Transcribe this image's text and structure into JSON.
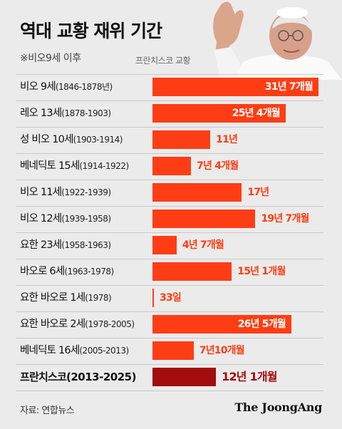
{
  "title": "역대 교황 재위 기간",
  "subtitle": "※비오9세 이후",
  "photo_caption": "프란치스코 교황",
  "source": "자료: 연합뉴스",
  "logo": "The JoongAng",
  "colors": {
    "bar": "#ff3d14",
    "highlight_bar": "#a30d0d",
    "background": "#ebebeb"
  },
  "chart_data": {
    "type": "bar",
    "orientation": "horizontal",
    "unit": "months",
    "categories": [
      "비오 9세(1846-1878년)",
      "레오 13세(1878-1903)",
      "성 비오 10세(1903-1914)",
      "베네딕토 15세(1914-1922)",
      "비오 11세(1922-1939)",
      "비오 12세(1939-1958)",
      "요한 23세(1958-1963)",
      "바오로 6세(1963-1978)",
      "요한 바오로 1세(1978)",
      "요한 바오로 2세(1978-2005)",
      "베네딕토 16세(2005-2013)",
      "프란치스코(2013-2025)"
    ],
    "rows": [
      {
        "name": "비오 9세",
        "years": "(1846-1878년)",
        "value_label": "31년 7개월",
        "months": 379,
        "label_inside": true
      },
      {
        "name": "레오 13세",
        "years": "(1878-1903)",
        "value_label": "25년 4개월",
        "months": 304,
        "label_inside": true
      },
      {
        "name": "성 비오 10세",
        "years": "(1903-1914)",
        "value_label": "11년",
        "months": 132,
        "label_inside": false
      },
      {
        "name": "베네딕토 15세",
        "years": "(1914-1922)",
        "value_label": "7년 4개월",
        "months": 88,
        "label_inside": false
      },
      {
        "name": "비오 11세",
        "years": "(1922-1939)",
        "value_label": "17년",
        "months": 204,
        "label_inside": false
      },
      {
        "name": "비오 12세",
        "years": "(1939-1958)",
        "value_label": "19년 7개월",
        "months": 235,
        "label_inside": false
      },
      {
        "name": "요한 23세",
        "years": "(1958-1963)",
        "value_label": "4년 7개월",
        "months": 55,
        "label_inside": false
      },
      {
        "name": "바오로 6세",
        "years": "(1963-1978)",
        "value_label": "15년 1개월",
        "months": 181,
        "label_inside": false
      },
      {
        "name": "요한 바오로 1세",
        "years": "(1978)",
        "value_label": "33일",
        "months": 1.1,
        "label_inside": false
      },
      {
        "name": "요한 바오로 2세",
        "years": "(1978-2005)",
        "value_label": "26년 5개월",
        "months": 317,
        "label_inside": true
      },
      {
        "name": "베네딕토 16세",
        "years": "(2005-2013)",
        "value_label": "7년10개월",
        "months": 94,
        "label_inside": false
      },
      {
        "name": "프란치스코",
        "years": "(2013-2025)",
        "value_label": "12년 1개월",
        "months": 145,
        "label_inside": false,
        "highlight": true
      }
    ]
  }
}
